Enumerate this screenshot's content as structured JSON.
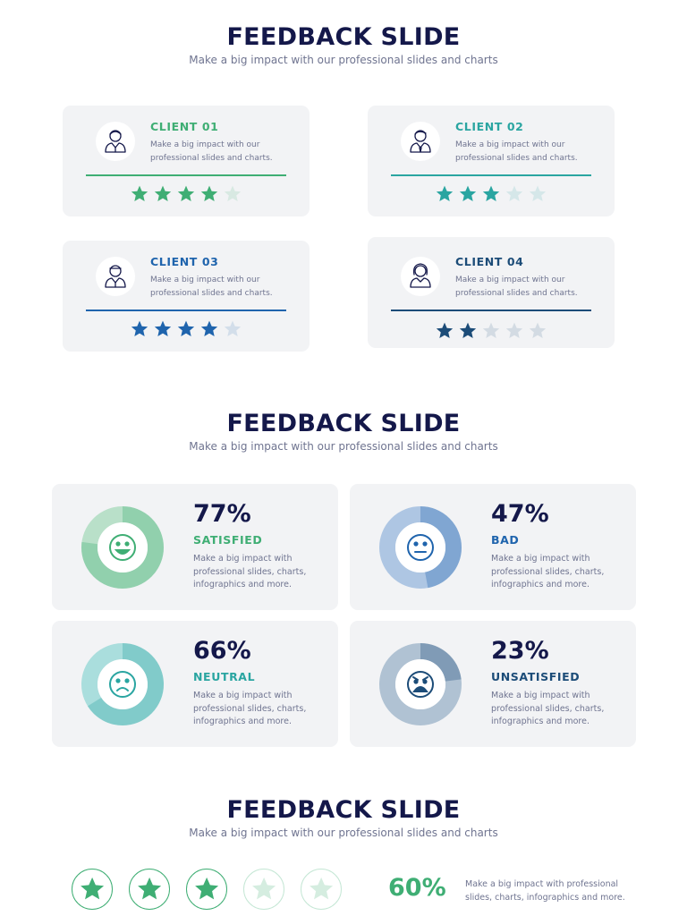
{
  "sections": [
    {
      "title": "FEEDBACK SLIDE",
      "subtitle": "Make a big impact with our professional slides and charts"
    },
    {
      "title": "FEEDBACK SLIDE",
      "subtitle": "Make a big impact with our professional slides and charts"
    },
    {
      "title": "FEEDBACK SLIDE",
      "subtitle": "Make a big impact with our professional slides and charts"
    }
  ],
  "clients": [
    {
      "name": "CLIENT 01",
      "description": "Make a big impact with our professional slides and charts.",
      "rating": 4,
      "max_rating": 5,
      "color": "#3fae74",
      "avatar_icon": "male-user-icon"
    },
    {
      "name": "CLIENT 02",
      "description": "Make a big impact with our professional slides and charts.",
      "rating": 3,
      "max_rating": 5,
      "color": "#2aa5a1",
      "avatar_icon": "male-user-icon"
    },
    {
      "name": "CLIENT 03",
      "description": "Make a big impact with our professional slides and charts.",
      "rating": 4,
      "max_rating": 5,
      "color": "#1f64ad",
      "avatar_icon": "male-user-icon"
    },
    {
      "name": "CLIENT 04",
      "description": "Make a big impact with our professional slides and charts.",
      "rating": 2,
      "max_rating": 5,
      "color": "#1c4c78",
      "avatar_icon": "female-user-icon"
    }
  ],
  "stats": [
    {
      "percent": "77%",
      "value": 77,
      "label": "SATISFIED",
      "description": "Make a big impact with professional slides, charts, infographics and more.",
      "color": "#3fae74",
      "ring_color": "#b9e0c9",
      "icon": "smiling-face-icon"
    },
    {
      "percent": "47%",
      "value": 47,
      "label": "BAD",
      "description": "Make a big impact with professional slides, charts, infographics and more.",
      "color": "#1f64ad",
      "ring_color": "#aec6e3",
      "icon": "neutral-face-icon"
    },
    {
      "percent": "66%",
      "value": 66,
      "label": "NEUTRAL",
      "description": "Make a big impact with professional slides, charts, infographics and more.",
      "color": "#2aa5a1",
      "ring_color": "#aadedd",
      "icon": "frowning-face-icon"
    },
    {
      "percent": "23%",
      "value": 23,
      "label": "UNSATISFIED",
      "description": "Make a big impact with professional slides, charts, infographics and more.",
      "color": "#1c4c78",
      "ring_color": "#b0c2d3",
      "icon": "angry-face-icon"
    }
  ],
  "overall": {
    "rating": 3,
    "max_rating": 5,
    "percent": "60%",
    "description": "Make a big impact with professional slides, charts, infographics and more.",
    "color": "#3fae74"
  }
}
